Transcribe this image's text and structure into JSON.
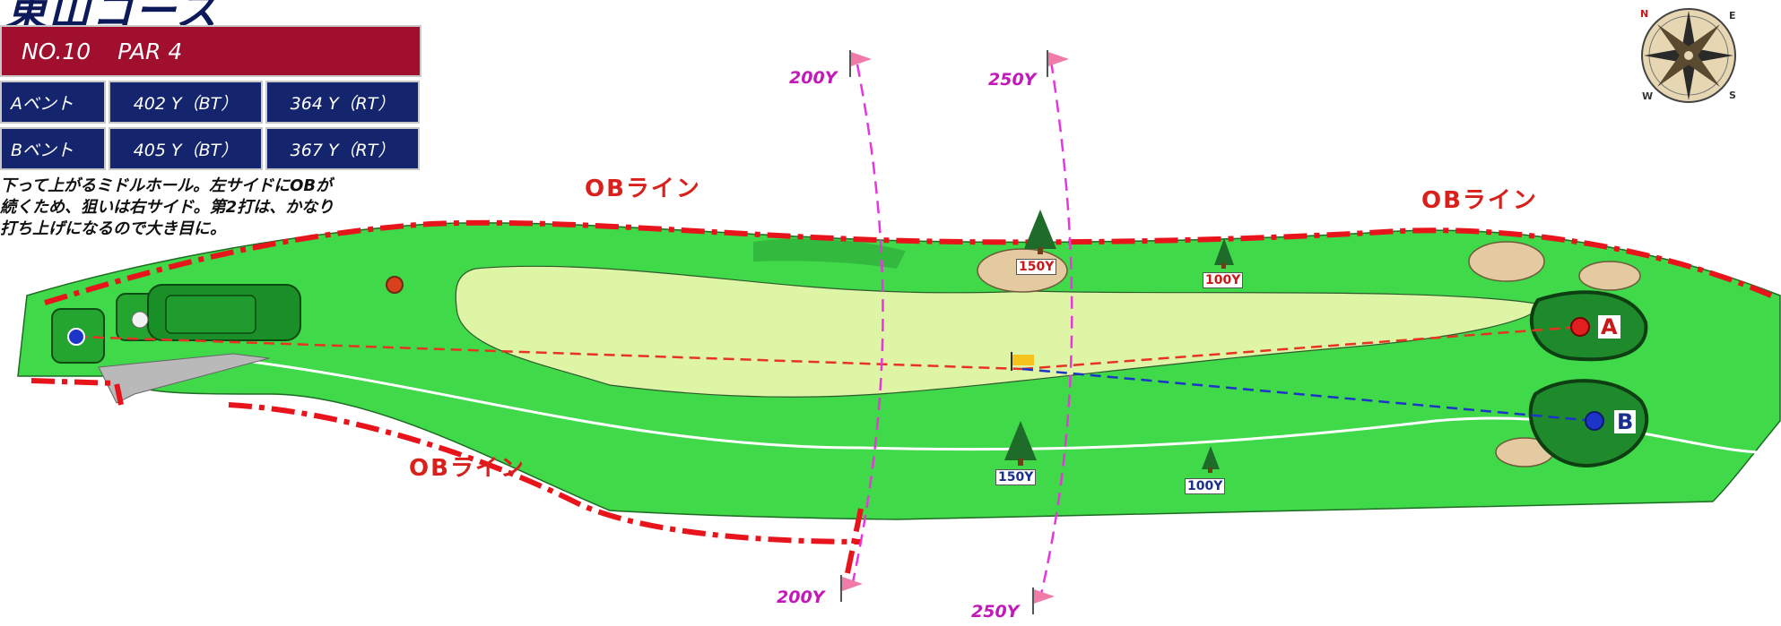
{
  "course": {
    "title": "東山コース"
  },
  "hole": {
    "number_label": "NO.10",
    "par_label": "PAR 4",
    "tees": [
      {
        "name": "Aベント",
        "bt": "402 Y（BT）",
        "rt": "364 Y（RT）"
      },
      {
        "name": "Bベント",
        "bt": "405 Y（BT）",
        "rt": "367 Y（RT）"
      }
    ],
    "description": "下って上がるミドルホール。左サイドにOBが\n続くため、狙いは右サイド。第2打は、かなり\n打ち上げになるので大き目に。"
  },
  "map": {
    "ob_labels": [
      "OBライン",
      "OBライン",
      "OBライン"
    ],
    "flag_yardages": [
      "200Y",
      "250Y",
      "200Y",
      "250Y"
    ],
    "markers": [
      "150Y",
      "100Y",
      "150Y",
      "100Y"
    ],
    "pins": [
      "A",
      "B"
    ],
    "compass_letters": [
      "N",
      "E",
      "S",
      "W"
    ],
    "colors": {
      "rough": "#3fd94a",
      "fairway": "#dff5a6",
      "green": "#1f8a2b",
      "ob": "#e8141b",
      "bunker": "#e3caa0",
      "guide": "#e736de"
    }
  }
}
